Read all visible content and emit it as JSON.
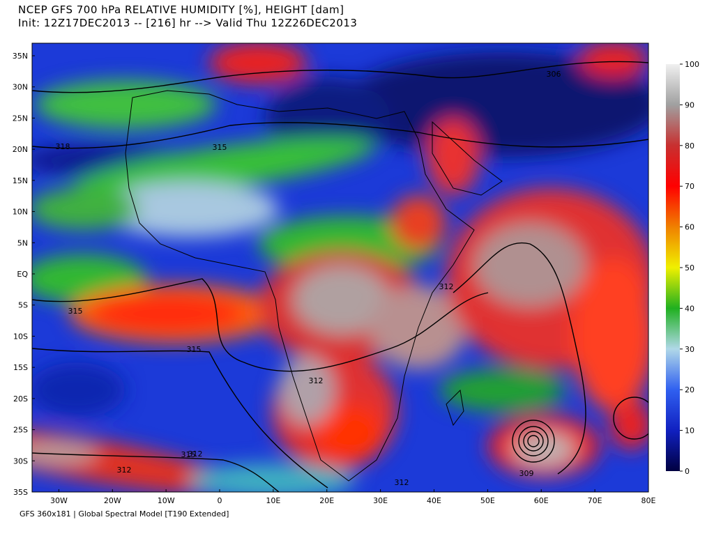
{
  "header": {
    "title": "NCEP GFS 700 hPa RELATIVE HUMIDITY [%], HEIGHT [dam]",
    "subtitle": "Init: 12Z17DEC2013 -- [216] hr --> Valid Thu 12Z26DEC2013"
  },
  "map": {
    "lat_labels": [
      "35N",
      "30N",
      "25N",
      "20N",
      "15N",
      "10N",
      "5N",
      "EQ",
      "5S",
      "10S",
      "15S",
      "20S",
      "25S",
      "30S",
      "35S"
    ],
    "lon_labels": [
      "30W",
      "20W",
      "10W",
      "0",
      "10E",
      "20E",
      "30E",
      "40E",
      "50E",
      "60E",
      "70E",
      "80E"
    ],
    "contour_labels": [
      "306",
      "318",
      "315",
      "315",
      "315",
      "312",
      "312",
      "312",
      "315",
      "312",
      "309",
      "312"
    ]
  },
  "colorbar": {
    "range": [
      0,
      100
    ],
    "ticks": [
      0,
      10,
      20,
      30,
      40,
      50,
      60,
      70,
      80,
      90,
      100
    ],
    "colors": [
      "#000040",
      "#1020c0",
      "#3060f0",
      "#b0d8e8",
      "#20b020",
      "#f0f000",
      "#f08000",
      "#ff0000",
      "#c83030",
      "#a0a0a0",
      "#f0f0f0"
    ]
  },
  "footer": "GFS 360x181 | Global Spectral Model [T190 Extended]"
}
